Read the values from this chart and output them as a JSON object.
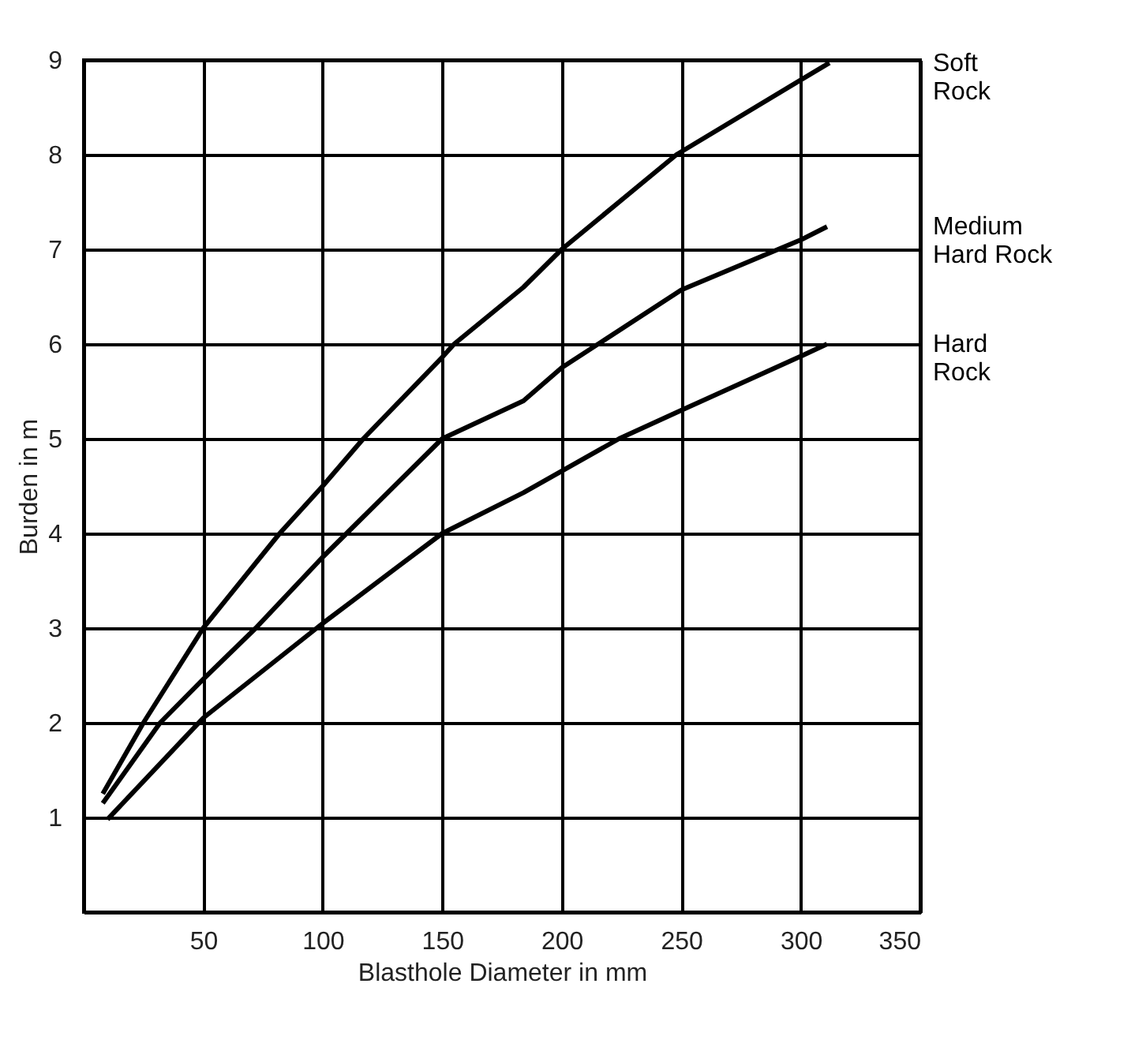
{
  "chart_data": {
    "type": "line",
    "xlabel": "Blasthole Diameter in mm",
    "ylabel": "Burden in m",
    "xlim": [
      0,
      350
    ],
    "ylim": [
      0,
      9
    ],
    "xticks": [
      50,
      100,
      150,
      200,
      250,
      300,
      350
    ],
    "yticks": [
      1,
      2,
      3,
      4,
      5,
      6,
      7,
      8,
      9
    ],
    "grid": true,
    "marker": "none",
    "line_style": "solid",
    "series": [
      {
        "name": "Soft\nRock",
        "color": "#000000",
        "x": [
          8,
          25,
          50,
          82,
          100,
          117,
          150,
          155,
          184,
          200,
          248,
          312
        ],
        "values": [
          1.25,
          2,
          3,
          4,
          4.5,
          5,
          5.86,
          6,
          6.6,
          7,
          8,
          8.97
        ]
      },
      {
        "name": "Medium\nHard Rock",
        "color": "#000000",
        "x": [
          8,
          32,
          50,
          72,
          100,
          110,
          150,
          184,
          200,
          250,
          300,
          311
        ],
        "values": [
          1.15,
          2,
          2.46,
          3,
          3.75,
          4,
          5,
          5.4,
          5.75,
          6.57,
          7.1,
          7.24
        ]
      },
      {
        "name": "Hard\nRock",
        "color": "#000000",
        "x": [
          10,
          50,
          100,
          150,
          184,
          224,
          250,
          300,
          311
        ],
        "values": [
          0.98,
          2.05,
          3.05,
          4,
          4.43,
          5,
          5.3,
          5.87,
          6.0
        ]
      }
    ]
  }
}
